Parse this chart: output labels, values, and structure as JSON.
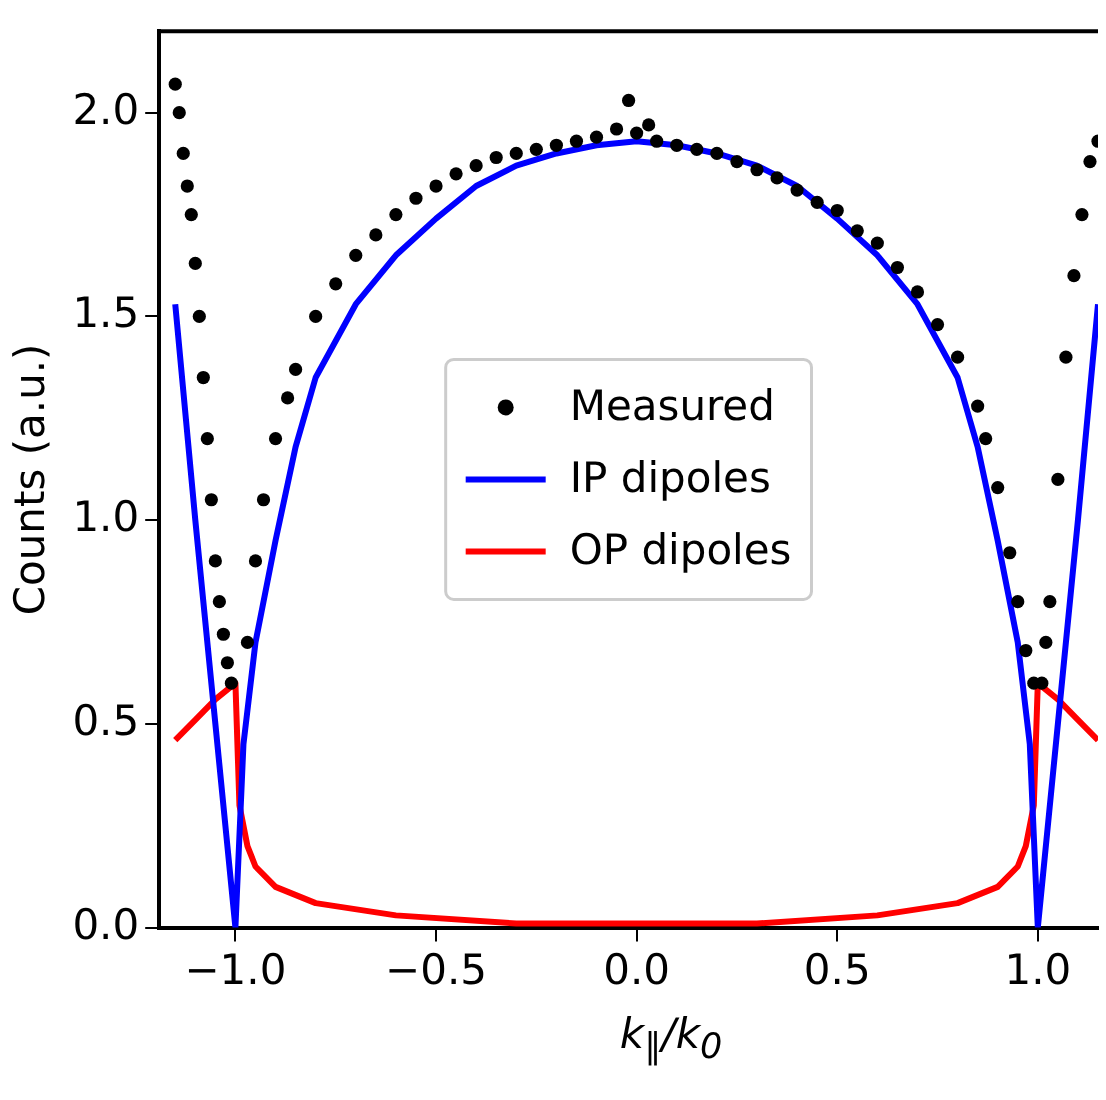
{
  "chart_data": {
    "type": "scatter",
    "xlabel": "k$_{∥}$/k$_{0}$",
    "ylabel": "Counts (a.u.)",
    "xlim": [
      -1.19,
      1.15
    ],
    "ylim": [
      0,
      2.2
    ],
    "xticks": [
      {
        "value": -1,
        "label": "−1.0"
      },
      {
        "value": -0.5,
        "label": "−0.5"
      },
      {
        "value": 0,
        "label": "0.0"
      },
      {
        "value": 0.5,
        "label": "0.5"
      },
      {
        "value": 1,
        "label": "1.0"
      }
    ],
    "yticks": [
      {
        "value": 0,
        "label": "0.0"
      },
      {
        "value": 0.5,
        "label": "0.5"
      },
      {
        "value": 1,
        "label": "1.0"
      },
      {
        "value": 1.5,
        "label": "1.5"
      },
      {
        "value": 2,
        "label": "2.0"
      }
    ],
    "grid": false,
    "legend": "center",
    "series": [
      {
        "name": "Measured",
        "type": "scatter",
        "marker": "circle",
        "color": "#000000",
        "x": [
          -1.15,
          -1.14,
          -1.13,
          -1.12,
          -1.11,
          -1.1,
          -1.09,
          -1.08,
          -1.07,
          -1.06,
          -1.05,
          -1.04,
          -1.03,
          -1.02,
          -1.01,
          -0.97,
          -0.95,
          -0.93,
          -0.9,
          -0.87,
          -0.85,
          -0.8,
          -0.75,
          -0.7,
          -0.65,
          -0.6,
          -0.55,
          -0.5,
          -0.45,
          -0.4,
          -0.35,
          -0.3,
          -0.25,
          -0.2,
          -0.15,
          -0.1,
          -0.05,
          -0.02,
          0,
          0.03,
          0.05,
          0.1,
          0.15,
          0.2,
          0.25,
          0.3,
          0.35,
          0.4,
          0.45,
          0.5,
          0.55,
          0.6,
          0.65,
          0.7,
          0.75,
          0.8,
          0.85,
          0.87,
          0.9,
          0.93,
          0.95,
          0.97,
          0.99,
          1.01,
          1.02,
          1.03,
          1.05,
          1.07,
          1.09,
          1.11,
          1.13,
          1.15
        ],
        "values": [
          2.07,
          2.0,
          1.9,
          1.82,
          1.75,
          1.63,
          1.5,
          1.35,
          1.2,
          1.05,
          0.9,
          0.8,
          0.72,
          0.65,
          0.6,
          0.7,
          0.9,
          1.05,
          1.2,
          1.3,
          1.37,
          1.5,
          1.58,
          1.65,
          1.7,
          1.75,
          1.79,
          1.82,
          1.85,
          1.87,
          1.89,
          1.9,
          1.91,
          1.92,
          1.93,
          1.94,
          1.96,
          2.03,
          1.95,
          1.97,
          1.93,
          1.92,
          1.91,
          1.9,
          1.88,
          1.86,
          1.84,
          1.81,
          1.78,
          1.76,
          1.71,
          1.68,
          1.62,
          1.56,
          1.48,
          1.4,
          1.28,
          1.2,
          1.08,
          0.92,
          0.8,
          0.68,
          0.6,
          0.6,
          0.7,
          0.8,
          1.1,
          1.4,
          1.6,
          1.75,
          1.88,
          1.93
        ]
      },
      {
        "name": "IP dipoles",
        "type": "line",
        "marker": "none",
        "color": "#0000ff",
        "x": [
          -1.15,
          -1.1,
          -1.05,
          -1.0,
          -0.98,
          -0.95,
          -0.9,
          -0.85,
          -0.8,
          -0.7,
          -0.6,
          -0.5,
          -0.4,
          -0.3,
          -0.2,
          -0.1,
          0,
          0.1,
          0.2,
          0.3,
          0.4,
          0.5,
          0.6,
          0.7,
          0.8,
          0.85,
          0.9,
          0.95,
          0.98,
          1.0,
          1.05,
          1.1,
          1.15
        ],
        "values": [
          1.53,
          1.0,
          0.5,
          0,
          0.45,
          0.7,
          0.95,
          1.18,
          1.35,
          1.53,
          1.65,
          1.74,
          1.82,
          1.87,
          1.9,
          1.92,
          1.93,
          1.92,
          1.9,
          1.87,
          1.82,
          1.74,
          1.65,
          1.53,
          1.35,
          1.18,
          0.95,
          0.7,
          0.45,
          0,
          0.5,
          1.0,
          1.53
        ]
      },
      {
        "name": "OP dipoles",
        "type": "line",
        "marker": "none",
        "color": "#ff0000",
        "x": [
          -1.15,
          -1.1,
          -1.05,
          -1.0,
          -0.99,
          -0.97,
          -0.95,
          -0.9,
          -0.8,
          -0.6,
          -0.3,
          0,
          0.3,
          0.6,
          0.8,
          0.9,
          0.95,
          0.97,
          0.99,
          1.0,
          1.05,
          1.1,
          1.15
        ],
        "values": [
          0.46,
          0.51,
          0.56,
          0.6,
          0.3,
          0.2,
          0.15,
          0.1,
          0.06,
          0.03,
          0.01,
          0.01,
          0.01,
          0.03,
          0.06,
          0.1,
          0.15,
          0.2,
          0.3,
          0.6,
          0.56,
          0.51,
          0.46
        ]
      }
    ]
  }
}
